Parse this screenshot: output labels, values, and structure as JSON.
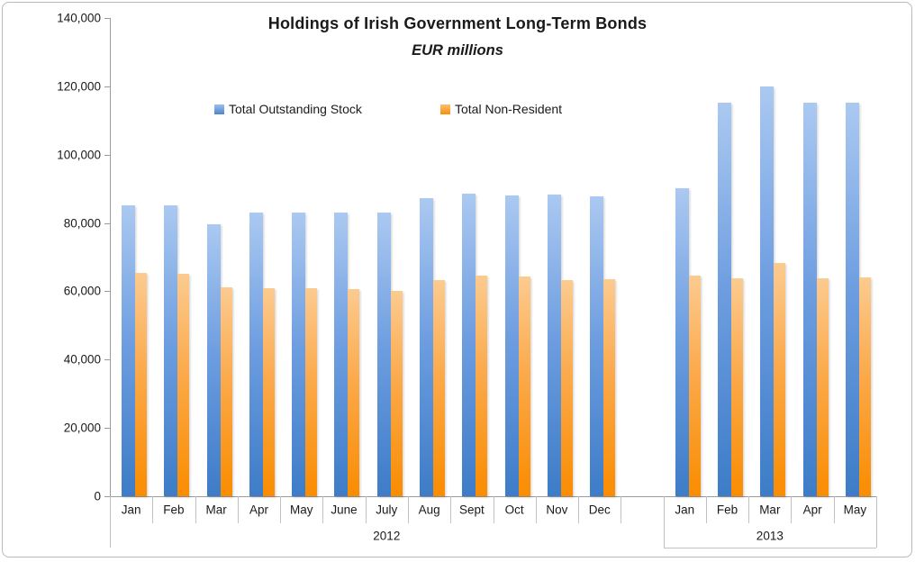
{
  "chart_data": {
    "type": "bar",
    "title": "Holdings of Irish Government Long-Term Bonds",
    "subtitle": "EUR millions",
    "ylabel": "",
    "xlabel": "",
    "ylim": [
      0,
      140000
    ],
    "ytick_step": 20000,
    "ytick_labels": [
      "0",
      "20,000",
      "40,000",
      "60,000",
      "80,000",
      "100,000",
      "120,000",
      "140,000"
    ],
    "grid": false,
    "legend_position": "top-center",
    "groups": [
      {
        "year": "2012",
        "months": [
          "Jan",
          "Feb",
          "Mar",
          "Apr",
          "May",
          "June",
          "July",
          "Aug",
          "Sept",
          "Oct",
          "Nov",
          "Dec"
        ]
      },
      {
        "year": "2013",
        "months": [
          "Jan",
          "Feb",
          "Mar",
          "Apr",
          "May"
        ]
      }
    ],
    "series": [
      {
        "name": "Total Outstanding Stock",
        "color": "#4d85c9",
        "values_2012": [
          85300,
          85300,
          79600,
          83100,
          83100,
          83000,
          83000,
          87300,
          88600,
          88200,
          88400,
          87900
        ],
        "values_2013": [
          90200,
          115300,
          120000,
          115300,
          115300
        ]
      },
      {
        "name": "Total Non-Resident",
        "color": "#fa8f05",
        "values_2012": [
          65400,
          65200,
          61100,
          60900,
          60900,
          60700,
          60200,
          63300,
          64500,
          64300,
          63300,
          63500
        ],
        "values_2013": [
          64700,
          63900,
          68400,
          63900,
          64100
        ]
      }
    ]
  }
}
